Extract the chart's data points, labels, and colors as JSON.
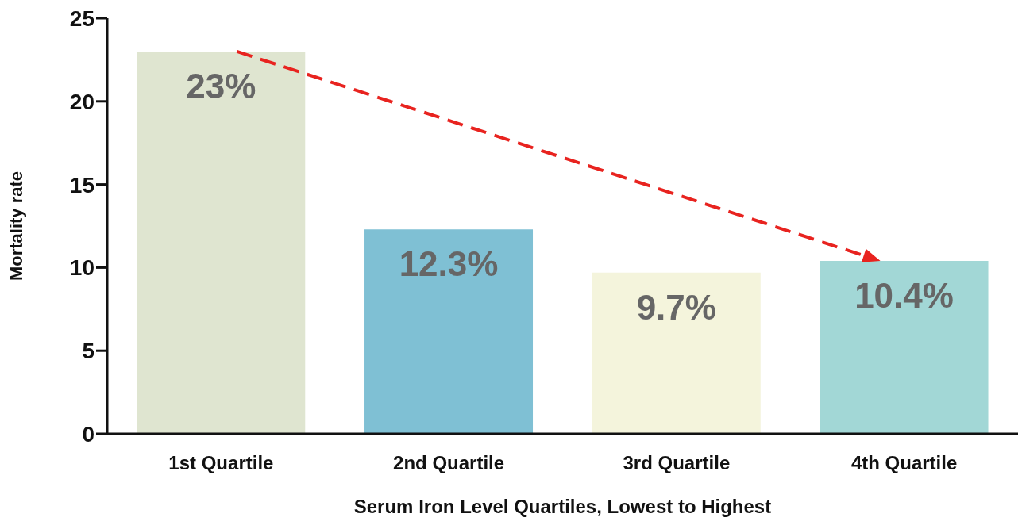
{
  "chart_data": {
    "type": "bar",
    "xlabel": "Serum Iron Level Quartiles, Lowest to Highest",
    "ylabel": "Mortality rate",
    "categories": [
      "1st Quartile",
      "2nd Quartile",
      "3rd Quartile",
      "4th Quartile"
    ],
    "values": [
      23,
      12.3,
      9.7,
      10.4
    ],
    "colors": [
      "#dfe5d0",
      "#7fc0d4",
      "#f4f4dc",
      "#a2d7d6"
    ],
    "value_labels": [
      "23%",
      "12.3%",
      "9.7%",
      "10.4%"
    ],
    "ylim": [
      0,
      25
    ],
    "yticks": [
      0,
      5,
      10,
      15,
      20,
      25
    ]
  }
}
